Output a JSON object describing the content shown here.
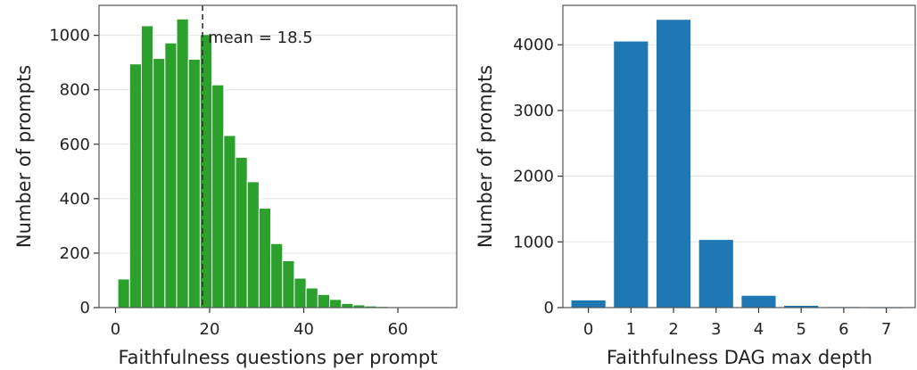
{
  "chart_data": [
    {
      "type": "bar",
      "subtype": "histogram",
      "xlabel": "Faithfulness questions per prompt",
      "ylabel": "Number of prompts",
      "xlim": [
        -3.5,
        72.5
      ],
      "ylim": [
        0,
        1110
      ],
      "xticks": [
        0,
        20,
        40,
        60
      ],
      "yticks": [
        0,
        200,
        400,
        600,
        800,
        1000
      ],
      "bin_width": 2.5,
      "bin_start": 0.5,
      "values": [
        105,
        895,
        1035,
        915,
        972,
        1060,
        912,
        1003,
        818,
        632,
        552,
        462,
        365,
        235,
        172,
        108,
        72,
        48,
        30,
        15,
        10,
        6,
        4,
        3,
        2,
        2,
        1,
        1
      ],
      "bar_color": "#2ca02c",
      "grid": "horizontal",
      "mean_line": {
        "value": 18.5,
        "label": "mean = 18.5",
        "style": "dashed"
      }
    },
    {
      "type": "bar",
      "xlabel": "Faithfulness DAG max depth",
      "ylabel": "Number of prompts",
      "xlim": [
        -0.6,
        7.7
      ],
      "ylim": [
        0,
        4600
      ],
      "categories": [
        "0",
        "1",
        "2",
        "3",
        "4",
        "5",
        "6",
        "7"
      ],
      "values": [
        110,
        4050,
        4380,
        1030,
        180,
        28,
        8,
        5
      ],
      "yticks": [
        0,
        1000,
        2000,
        3000,
        4000
      ],
      "bar_color": "#1f77b4",
      "grid": "horizontal"
    }
  ]
}
